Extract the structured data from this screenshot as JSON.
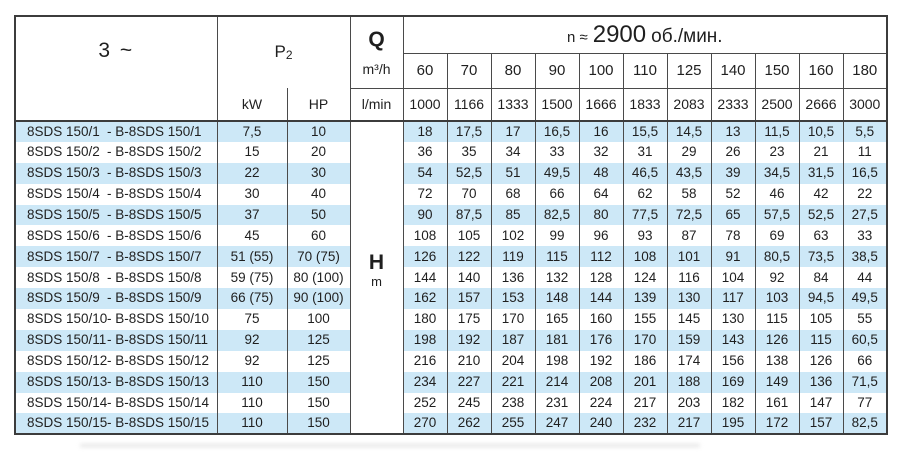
{
  "header": {
    "phase": "3 ~",
    "p2_base": "P",
    "p2_sub": "2",
    "kw_label": "kW",
    "hp_label": "HP",
    "q_label": "Q",
    "flow_unit": "m³/h",
    "lmin_label": "l/min",
    "speed_prefix": "n ≈",
    "speed_value": "2900",
    "speed_suffix": "об./мин.",
    "head_symbol": "H",
    "head_unit": "m",
    "flow_m3h": [
      "60",
      "70",
      "80",
      "90",
      "100",
      "110",
      "125",
      "140",
      "150",
      "160",
      "180"
    ],
    "flow_lmin": [
      "1000",
      "1166",
      "1333",
      "1500",
      "1666",
      "1833",
      "2083",
      "2333",
      "2500",
      "2666",
      "3000"
    ]
  },
  "labels": {
    "model_separator": "-"
  },
  "colors": {
    "row_band": "#cde8f7",
    "grid_line": "#4a4a4a"
  },
  "rows": [
    {
      "model": "8SDS 150/1",
      "model_b": "B-8SDS 150/1",
      "kw": "7,5",
      "hp": "10",
      "values": [
        "18",
        "17,5",
        "17",
        "16,5",
        "16",
        "15,5",
        "14,5",
        "13",
        "11,5",
        "10,5",
        "5,5"
      ]
    },
    {
      "model": "8SDS 150/2",
      "model_b": "B-8SDS 150/2",
      "kw": "15",
      "hp": "20",
      "values": [
        "36",
        "35",
        "34",
        "33",
        "32",
        "31",
        "29",
        "26",
        "23",
        "21",
        "11"
      ]
    },
    {
      "model": "8SDS 150/3",
      "model_b": "B-8SDS 150/3",
      "kw": "22",
      "hp": "30",
      "values": [
        "54",
        "52,5",
        "51",
        "49,5",
        "48",
        "46,5",
        "43,5",
        "39",
        "34,5",
        "31,5",
        "16,5"
      ]
    },
    {
      "model": "8SDS 150/4",
      "model_b": "B-8SDS 150/4",
      "kw": "30",
      "hp": "40",
      "values": [
        "72",
        "70",
        "68",
        "66",
        "64",
        "62",
        "58",
        "52",
        "46",
        "42",
        "22"
      ]
    },
    {
      "model": "8SDS 150/5",
      "model_b": "B-8SDS 150/5",
      "kw": "37",
      "hp": "50",
      "values": [
        "90",
        "87,5",
        "85",
        "82,5",
        "80",
        "77,5",
        "72,5",
        "65",
        "57,5",
        "52,5",
        "27,5"
      ]
    },
    {
      "model": "8SDS 150/6",
      "model_b": "B-8SDS 150/6",
      "kw": "45",
      "hp": "60",
      "values": [
        "108",
        "105",
        "102",
        "99",
        "96",
        "93",
        "87",
        "78",
        "69",
        "63",
        "33"
      ]
    },
    {
      "model": "8SDS 150/7",
      "model_b": "B-8SDS 150/7",
      "kw": "51 (55)",
      "hp": "70 (75)",
      "values": [
        "126",
        "122",
        "119",
        "115",
        "112",
        "108",
        "101",
        "91",
        "80,5",
        "73,5",
        "38,5"
      ]
    },
    {
      "model": "8SDS 150/8",
      "model_b": "B-8SDS 150/8",
      "kw": "59 (75)",
      "hp": "80 (100)",
      "values": [
        "144",
        "140",
        "136",
        "132",
        "128",
        "124",
        "116",
        "104",
        "92",
        "84",
        "44"
      ]
    },
    {
      "model": "8SDS 150/9",
      "model_b": "B-8SDS 150/9",
      "kw": "66 (75)",
      "hp": "90 (100)",
      "values": [
        "162",
        "157",
        "153",
        "148",
        "144",
        "139",
        "130",
        "117",
        "103",
        "94,5",
        "49,5"
      ]
    },
    {
      "model": "8SDS 150/10",
      "model_b": "B-8SDS 150/10",
      "kw": "75",
      "hp": "100",
      "values": [
        "180",
        "175",
        "170",
        "165",
        "160",
        "155",
        "145",
        "130",
        "115",
        "105",
        "55"
      ]
    },
    {
      "model": "8SDS 150/11",
      "model_b": "B-8SDS 150/11",
      "kw": "92",
      "hp": "125",
      "values": [
        "198",
        "192",
        "187",
        "181",
        "176",
        "170",
        "159",
        "143",
        "126",
        "115",
        "60,5"
      ]
    },
    {
      "model": "8SDS 150/12",
      "model_b": "B-8SDS 150/12",
      "kw": "92",
      "hp": "125",
      "values": [
        "216",
        "210",
        "204",
        "198",
        "192",
        "186",
        "174",
        "156",
        "138",
        "126",
        "66"
      ]
    },
    {
      "model": "8SDS 150/13",
      "model_b": "B-8SDS 150/13",
      "kw": "110",
      "hp": "150",
      "values": [
        "234",
        "227",
        "221",
        "214",
        "208",
        "201",
        "188",
        "169",
        "149",
        "136",
        "71,5"
      ]
    },
    {
      "model": "8SDS 150/14",
      "model_b": "B-8SDS 150/14",
      "kw": "110",
      "hp": "150",
      "values": [
        "252",
        "245",
        "238",
        "231",
        "224",
        "217",
        "203",
        "182",
        "161",
        "147",
        "77"
      ]
    },
    {
      "model": "8SDS 150/15",
      "model_b": "B-8SDS 150/15",
      "kw": "110",
      "hp": "150",
      "values": [
        "270",
        "262",
        "255",
        "247",
        "240",
        "232",
        "217",
        "195",
        "172",
        "157",
        "82,5"
      ]
    }
  ]
}
